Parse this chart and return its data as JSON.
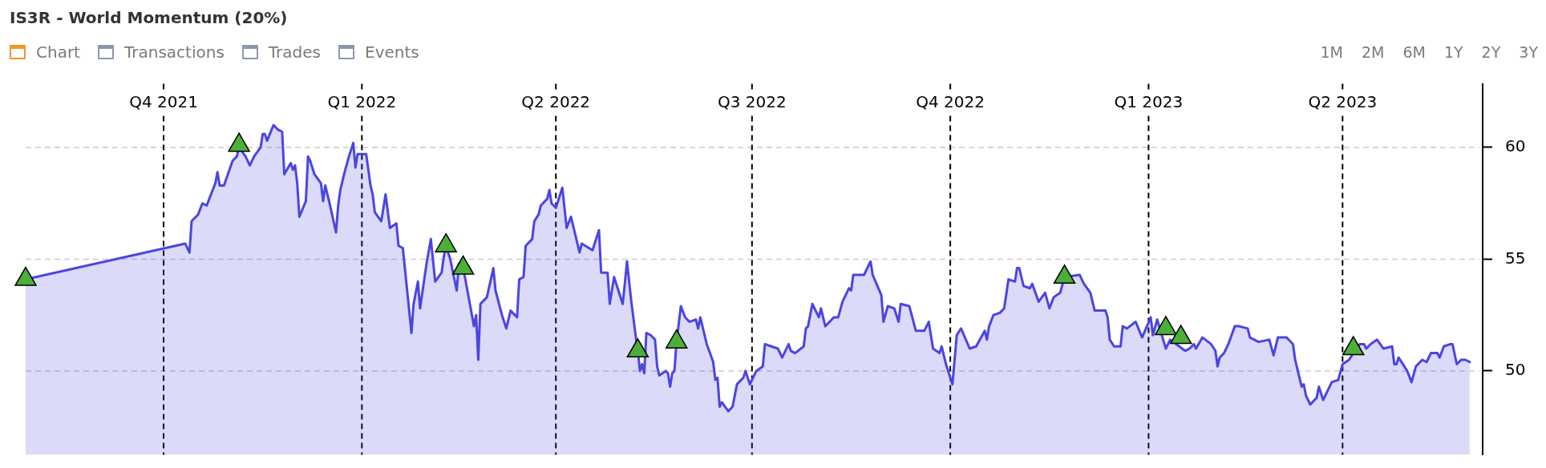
{
  "chart_data": {
    "type": "area",
    "title": "IS3R - World Momentum (20%)",
    "annotations": [
      "Chart",
      "Transactions",
      "Trades",
      "Events",
      "1M",
      "2M",
      "6M",
      "1Y",
      "2Y",
      "3Y"
    ],
    "xlim": [
      "2021-07-29",
      "2023-06-05"
    ],
    "xticks": [
      {
        "value": "2021-10-01",
        "label": "Q4 2021"
      },
      {
        "value": "2022-01-01",
        "label": "Q1 2022"
      },
      {
        "value": "2022-04-01",
        "label": "Q2 2022"
      },
      {
        "value": "2022-07-01",
        "label": "Q3 2022"
      },
      {
        "value": "2022-10-01",
        "label": "Q4 2022"
      },
      {
        "value": "2023-01-01",
        "label": "Q1 2023"
      },
      {
        "value": "2023-04-01",
        "label": "Q2 2023"
      }
    ],
    "ylim": [
      46.25,
      62.85
    ],
    "yticks": [
      50,
      55,
      60
    ],
    "grid": true,
    "series": [
      {
        "color": "#4b45e2",
        "x": [
          "2021-07-29",
          "2021-10-11",
          "2021-10-13",
          "2021-10-14",
          "2021-10-17",
          "2021-10-19",
          "2021-10-21",
          "2021-10-25",
          "2021-10-26",
          "2021-10-27",
          "2021-10-29",
          "2021-11-02",
          "2021-11-04",
          "2021-11-05",
          "2021-11-08",
          "2021-11-10",
          "2021-11-12",
          "2021-11-15",
          "2021-11-16",
          "2021-11-17",
          "2021-11-18",
          "2021-11-21",
          "2021-11-23",
          "2021-11-25",
          "2021-11-26",
          "2021-11-29",
          "2021-11-30",
          "2021-12-01",
          "2021-12-02",
          "2021-12-03",
          "2021-12-06",
          "2021-12-07",
          "2021-12-08",
          "2021-12-10",
          "2021-12-13",
          "2021-12-14",
          "2021-12-15",
          "2021-12-17",
          "2021-12-20",
          "2021-12-21",
          "2021-12-22",
          "2021-12-24",
          "2021-12-26",
          "2021-12-28",
          "2021-12-29",
          "2021-12-30",
          "2022-01-03",
          "2022-01-05",
          "2022-01-06",
          "2022-01-07",
          "2022-01-10",
          "2022-01-12",
          "2022-01-14",
          "2022-01-17",
          "2022-01-18",
          "2022-01-20",
          "2022-01-24",
          "2022-01-25",
          "2022-01-27",
          "2022-01-28",
          "2022-01-31",
          "2022-02-02",
          "2022-02-04",
          "2022-02-07",
          "2022-02-08",
          "2022-02-09",
          "2022-02-11",
          "2022-02-14",
          "2022-02-15",
          "2022-02-17",
          "2022-02-18",
          "2022-02-22",
          "2022-02-23",
          "2022-02-24",
          "2022-02-25",
          "2022-02-28",
          "2022-03-03",
          "2022-03-04",
          "2022-03-07",
          "2022-03-09",
          "2022-03-11",
          "2022-03-14",
          "2022-03-15",
          "2022-03-17",
          "2022-03-18",
          "2022-03-21",
          "2022-03-22",
          "2022-03-24",
          "2022-03-25",
          "2022-03-28",
          "2022-03-29",
          "2022-03-30",
          "2022-04-01",
          "2022-04-04",
          "2022-04-06",
          "2022-04-08",
          "2022-04-12",
          "2022-04-13",
          "2022-04-18",
          "2022-04-21",
          "2022-04-22",
          "2022-04-25",
          "2022-04-26",
          "2022-04-28",
          "2022-05-02",
          "2022-05-03",
          "2022-05-04",
          "2022-05-06",
          "2022-05-08",
          "2022-05-09",
          "2022-05-10",
          "2022-05-11",
          "2022-05-12",
          "2022-05-13",
          "2022-05-15",
          "2022-05-17",
          "2022-05-18",
          "2022-05-19",
          "2022-05-22",
          "2022-05-23",
          "2022-05-24",
          "2022-05-25",
          "2022-05-26",
          "2022-05-27",
          "2022-05-29",
          "2022-05-31",
          "2022-06-02",
          "2022-06-05",
          "2022-06-06",
          "2022-06-07",
          "2022-06-10",
          "2022-06-13",
          "2022-06-14",
          "2022-06-15",
          "2022-06-16",
          "2022-06-17",
          "2022-06-20",
          "2022-06-22",
          "2022-06-24",
          "2022-06-27",
          "2022-06-28",
          "2022-06-30",
          "2022-07-03",
          "2022-07-06",
          "2022-07-07",
          "2022-07-10",
          "2022-07-13",
          "2022-07-15",
          "2022-07-18",
          "2022-07-19",
          "2022-07-21",
          "2022-07-25",
          "2022-07-26",
          "2022-07-27",
          "2022-07-29",
          "2022-08-01",
          "2022-08-02",
          "2022-08-04",
          "2022-08-08",
          "2022-08-10",
          "2022-08-12",
          "2022-08-15",
          "2022-08-16",
          "2022-08-17",
          "2022-08-22",
          "2022-08-25",
          "2022-08-26",
          "2022-08-30",
          "2022-08-31",
          "2022-09-02",
          "2022-09-05",
          "2022-09-07",
          "2022-09-08",
          "2022-09-12",
          "2022-09-15",
          "2022-09-19",
          "2022-09-21",
          "2022-09-23",
          "2022-09-26",
          "2022-09-27",
          "2022-09-29",
          "2022-10-02",
          "2022-10-04",
          "2022-10-06",
          "2022-10-10",
          "2022-10-13",
          "2022-10-17",
          "2022-10-18",
          "2022-10-19",
          "2022-10-21",
          "2022-10-24",
          "2022-10-26",
          "2022-10-28",
          "2022-10-31",
          "2022-11-01",
          "2022-11-02",
          "2022-11-04",
          "2022-11-07",
          "2022-11-08",
          "2022-11-11",
          "2022-11-14",
          "2022-11-16",
          "2022-11-18",
          "2022-11-21",
          "2022-11-23",
          "2022-11-30",
          "2022-12-02",
          "2022-12-05",
          "2022-12-07",
          "2022-12-12",
          "2022-12-13",
          "2022-12-14",
          "2022-12-16",
          "2022-12-19",
          "2022-12-20",
          "2022-12-22",
          "2022-12-26",
          "2022-12-29",
          "2023-01-02",
          "2023-01-03",
          "2023-01-05",
          "2023-01-09",
          "2023-01-11",
          "2023-01-18",
          "2023-01-20",
          "2023-01-22",
          "2023-01-23",
          "2023-01-26",
          "2023-01-30",
          "2023-02-01",
          "2023-02-02",
          "2023-02-03",
          "2023-02-05",
          "2023-02-07",
          "2023-02-10",
          "2023-02-12",
          "2023-02-16",
          "2023-02-17",
          "2023-02-21",
          "2023-02-26",
          "2023-02-28",
          "2023-03-02",
          "2023-03-06",
          "2023-03-09",
          "2023-03-10",
          "2023-03-13",
          "2023-03-14",
          "2023-03-15",
          "2023-03-17",
          "2023-03-20",
          "2023-03-21",
          "2023-03-23",
          "2023-03-27",
          "2023-03-30",
          "2023-04-01",
          "2023-04-04",
          "2023-04-06",
          "2023-04-09",
          "2023-04-11",
          "2023-04-12",
          "2023-04-14",
          "2023-04-17",
          "2023-04-20",
          "2023-04-24",
          "2023-04-25",
          "2023-04-26",
          "2023-04-27",
          "2023-05-01",
          "2023-05-03",
          "2023-05-05",
          "2023-05-08",
          "2023-05-10",
          "2023-05-12",
          "2023-05-15",
          "2023-05-16",
          "2023-05-18",
          "2023-05-21",
          "2023-05-22",
          "2023-05-24",
          "2023-05-26",
          "2023-05-28",
          "2023-05-30"
        ],
        "values": [
          54.1,
          55.7,
          55.3,
          56.7,
          57.0,
          57.5,
          57.4,
          58.4,
          58.9,
          58.3,
          58.3,
          59.4,
          59.6,
          60.0,
          59.6,
          59.2,
          59.6,
          60.0,
          60.6,
          60.6,
          60.3,
          61.0,
          60.8,
          60.7,
          58.8,
          59.3,
          59.0,
          59.2,
          58.4,
          56.9,
          57.6,
          59.6,
          59.4,
          58.8,
          58.4,
          57.6,
          58.3,
          57.5,
          56.2,
          57.4,
          58.1,
          58.9,
          59.6,
          60.2,
          59.1,
          59.7,
          59.7,
          58.3,
          57.9,
          57.1,
          56.7,
          57.9,
          56.4,
          56.6,
          55.6,
          55.5,
          51.7,
          53.0,
          54.0,
          52.8,
          54.8,
          55.9,
          54.0,
          54.4,
          55.1,
          55.6,
          55.0,
          53.6,
          54.8,
          54.6,
          54.1,
          52.0,
          52.5,
          50.5,
          53.0,
          53.3,
          54.6,
          53.6,
          52.5,
          51.9,
          52.7,
          52.4,
          54.1,
          54.2,
          55.6,
          55.9,
          56.7,
          57.0,
          57.4,
          57.7,
          58.1,
          57.5,
          57.3,
          58.2,
          56.4,
          56.9,
          55.3,
          55.7,
          55.4,
          56.3,
          54.4,
          54.4,
          53.0,
          54.2,
          53.0,
          53.9,
          54.9,
          53.1,
          51.6,
          50.9,
          50.0,
          50.3,
          49.9,
          51.7,
          51.6,
          51.4,
          50.2,
          49.8,
          50.0,
          49.9,
          49.3,
          49.9,
          50.0,
          51.3,
          52.9,
          52.4,
          52.2,
          52.3,
          51.9,
          52.4,
          51.2,
          50.4,
          49.6,
          49.7,
          48.4,
          48.6,
          48.2,
          48.4,
          49.4,
          49.7,
          50.0,
          49.4,
          50.0,
          50.2,
          51.2,
          51.1,
          51.0,
          50.6,
          51.2,
          50.9,
          50.8,
          51.1,
          51.9,
          52.0,
          53.0,
          52.4,
          52.8,
          52.0,
          52.4,
          52.4,
          53.1,
          53.7,
          53.6,
          54.3,
          54.3,
          54.9,
          54.3,
          53.4,
          52.2,
          52.9,
          52.8,
          52.2,
          53.0,
          52.9,
          51.8,
          51.8,
          52.2,
          51.0,
          50.8,
          51.1,
          50.3,
          49.4,
          51.6,
          51.9,
          51.0,
          51.1,
          51.8,
          51.4,
          52.0,
          52.5,
          52.6,
          52.8,
          54.1,
          54.0,
          54.6,
          54.6,
          53.8,
          53.7,
          53.9,
          53.1,
          53.5,
          52.8,
          53.3,
          53.5,
          54.2,
          54.3,
          53.9,
          53.5,
          52.7,
          52.7,
          52.4,
          51.4,
          51.1,
          51.1,
          52.0,
          51.9,
          52.2,
          51.5,
          52.4,
          51.6,
          52.3,
          51.0,
          51.4,
          50.9,
          51.0,
          51.2,
          51.0,
          51.5,
          51.2,
          50.9,
          50.2,
          50.6,
          50.8,
          51.2,
          52.0,
          52.0,
          51.9,
          51.5,
          51.3,
          51.4,
          50.7,
          51.5,
          51.5,
          51.2,
          50.5,
          49.3,
          49.4,
          48.9,
          48.5,
          48.8,
          49.3,
          48.7,
          49.5,
          49.6,
          50.3,
          50.5,
          50.8,
          51.2,
          51.2,
          51.0,
          51.2,
          51.4,
          51.0,
          51.1,
          50.3,
          50.3,
          50.6,
          50.0,
          49.5,
          50.2,
          50.5,
          50.4,
          50.8,
          50.8,
          50.6,
          51.1,
          51.2,
          51.2,
          50.3,
          50.5,
          50.5,
          50.4
        ]
      },
      {
        "type": "scatter",
        "color": "#4caf3a",
        "marker": "triangle",
        "x": [
          "2021-07-29",
          "2021-11-05",
          "2022-02-09",
          "2022-02-17",
          "2022-05-09",
          "2022-05-27",
          "2022-11-23",
          "2023-01-09",
          "2023-01-16",
          "2023-04-06"
        ],
        "values": [
          54.1,
          60.1,
          55.6,
          54.6,
          50.9,
          51.3,
          54.2,
          51.9,
          51.5,
          51.0
        ]
      }
    ]
  }
}
